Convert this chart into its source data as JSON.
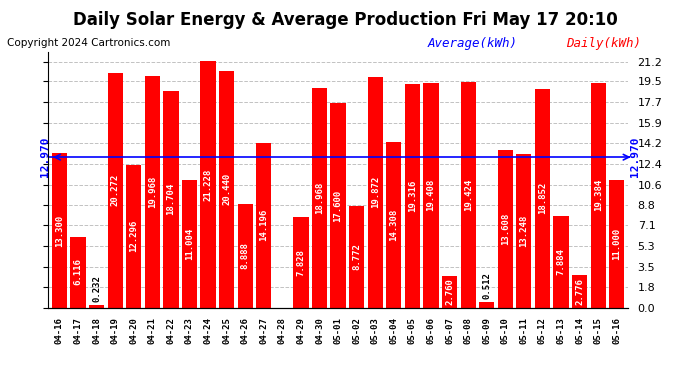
{
  "title": "Daily Solar Energy & Average Production Fri May 17 20:10",
  "copyright": "Copyright 2024 Cartronics.com",
  "legend_avg": "Average(kWh)",
  "legend_daily": "Daily(kWh)",
  "average_value": 12.97,
  "categories": [
    "04-16",
    "04-17",
    "04-18",
    "04-19",
    "04-20",
    "04-21",
    "04-22",
    "04-23",
    "04-24",
    "04-25",
    "04-26",
    "04-27",
    "04-28",
    "04-29",
    "04-30",
    "05-01",
    "05-02",
    "05-03",
    "05-04",
    "05-05",
    "05-06",
    "05-07",
    "05-08",
    "05-09",
    "05-10",
    "05-11",
    "05-12",
    "05-13",
    "05-14",
    "05-15",
    "05-16"
  ],
  "values": [
    13.3,
    6.116,
    0.232,
    20.272,
    12.296,
    19.968,
    18.704,
    11.004,
    21.228,
    20.44,
    8.888,
    14.196,
    0.0,
    7.828,
    18.968,
    17.6,
    8.772,
    19.872,
    14.308,
    19.316,
    19.408,
    2.76,
    19.424,
    0.512,
    13.608,
    13.248,
    18.852,
    7.884,
    2.776,
    19.384,
    11.0
  ],
  "bar_color": "#ff0000",
  "avg_line_color": "#0000ff",
  "avg_label_color": "#0000ff",
  "bar_text_color": "#ffffff",
  "bar_text_fontsize": 6.5,
  "title_fontsize": 12,
  "copyright_fontsize": 7.5,
  "legend_avg_fontsize": 9,
  "legend_daily_fontsize": 9,
  "yticks": [
    0.0,
    1.8,
    3.5,
    5.3,
    7.1,
    8.8,
    10.6,
    12.4,
    14.2,
    15.9,
    17.7,
    19.5,
    21.2
  ],
  "ylim": [
    0,
    22.0
  ],
  "background_color": "#ffffff",
  "grid_color": "#999999",
  "avg_label_value": "12.970"
}
